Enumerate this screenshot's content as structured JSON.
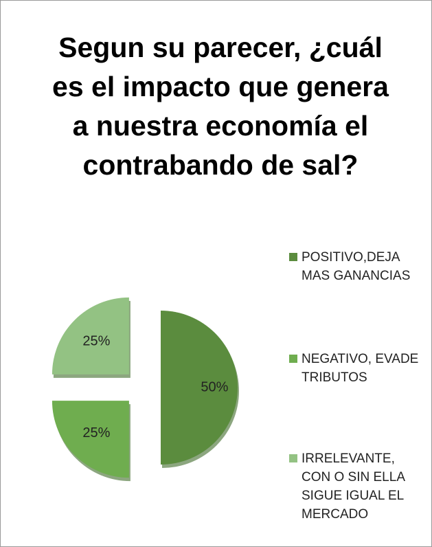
{
  "chart_data": {
    "type": "pie",
    "title": "Segun su parecer, ¿cuál es el impacto que genera a nuestra economía el contrabando de sal?",
    "categories": [
      "POSITIVO,DEJA MAS GANANCIAS",
      "NEGATIVO, EVADE TRIBUTOS",
      "IRRELEVANTE, CON O SIN ELLA SIGUE IGUAL EL MERCADO"
    ],
    "values": [
      50,
      25,
      25
    ],
    "value_labels": [
      "50%",
      "25%",
      "25%"
    ],
    "colors": [
      "#5b8c3e",
      "#6fad4f",
      "#93c283"
    ],
    "legend": "right"
  }
}
